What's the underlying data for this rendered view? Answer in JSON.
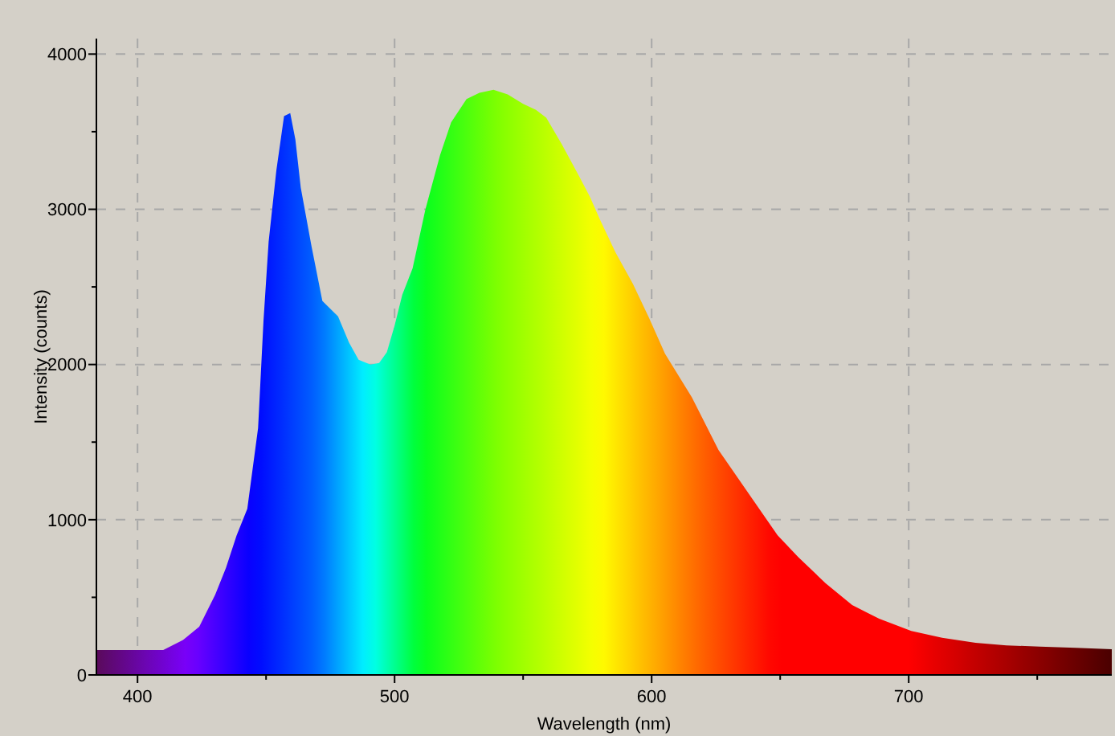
{
  "chart_data": {
    "type": "area",
    "xlabel": "Wavelength (nm)",
    "ylabel": "Intensity (counts)",
    "x": [
      384,
      400,
      410,
      417.7,
      424,
      430.2,
      434.4,
      438.5,
      442.7,
      446.9,
      449,
      451,
      454,
      457,
      459.4,
      461.4,
      463.5,
      467.7,
      471.9,
      478,
      482.3,
      486,
      490.6,
      494,
      497,
      500,
      503,
      507,
      512,
      517.7,
      522,
      528,
      533,
      538.5,
      544,
      550,
      555,
      559,
      565,
      571.9,
      576,
      580,
      586,
      592.7,
      599,
      605.2,
      615.6,
      626,
      640.6,
      649,
      657,
      667.7,
      678,
      688.5,
      701,
      713,
      726,
      738,
      751,
      765,
      779
    ],
    "values": [
      160,
      160,
      160,
      225,
      310,
      517,
      690,
      897,
      1070,
      1590,
      2280,
      2790,
      3250,
      3600,
      3620,
      3450,
      3140,
      2760,
      2410,
      2310,
      2140,
      2030,
      2000,
      2010,
      2080,
      2250,
      2450,
      2620,
      3000,
      3350,
      3560,
      3710,
      3750,
      3770,
      3740,
      3680,
      3640,
      3590,
      3420,
      3210,
      3080,
      2930,
      2720,
      2520,
      2300,
      2070,
      1790,
      1450,
      1100,
      900,
      760,
      590,
      450,
      362,
      283,
      240,
      207,
      190,
      183,
      175,
      166
    ],
    "xlim": [
      384,
      779
    ],
    "ylim": [
      0,
      4100
    ],
    "xticks": [
      400,
      {
        "value": 450,
        "label": null
      },
      500,
      {
        "value": 550,
        "label": null
      },
      600,
      {
        "value": 650,
        "label": null
      },
      700,
      {
        "value": 750,
        "label": null
      }
    ],
    "yticks": [
      0,
      {
        "value": 500,
        "label": null
      },
      1000,
      {
        "value": 1500,
        "label": null
      },
      2000,
      {
        "value": 2500,
        "label": null
      },
      3000,
      {
        "value": 3500,
        "label": null
      },
      4000
    ],
    "grid": true
  }
}
